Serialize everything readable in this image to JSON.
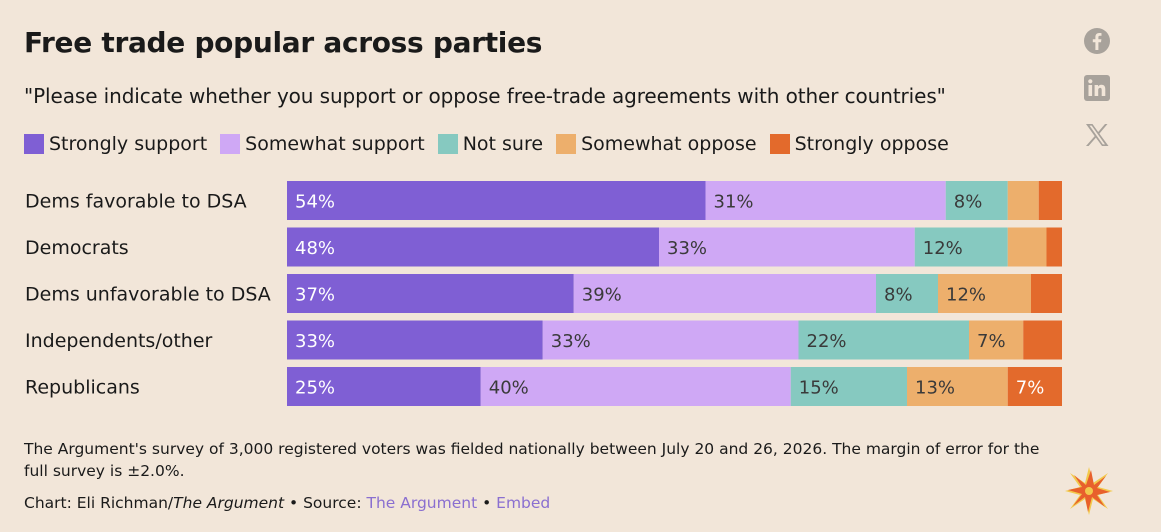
{
  "title": "Free trade popular across parties",
  "subtitle": "\"Please indicate whether you support or oppose free-trade agreements with other countries\"",
  "colors": {
    "strongly_support": "#7f5fd4",
    "somewhat_support": "#cfa8f5",
    "not_sure": "#86c9c0",
    "somewhat_oppose": "#edaf6c",
    "strongly_oppose": "#e36a2c",
    "background": "#f2e6d9"
  },
  "social": {
    "facebook_icon": "facebook-icon",
    "linkedin_icon": "linkedin-icon",
    "x_icon": "x-icon"
  },
  "chart_data": {
    "type": "bar",
    "orientation": "horizontal",
    "stacked": true,
    "xlim": [
      0,
      100
    ],
    "grid": false,
    "legend_position": "top-left",
    "categories": [
      "Dems favorable to DSA",
      "Democrats",
      "Dems unfavorable to DSA",
      "Independents/other",
      "Republicans"
    ],
    "series": [
      {
        "name": "Strongly support",
        "values": [
          54,
          48,
          37,
          33,
          25
        ],
        "labels": [
          "54%",
          "48%",
          "37%",
          "33%",
          "25%"
        ],
        "color": "#7f5fd4"
      },
      {
        "name": "Somewhat support",
        "values": [
          31,
          33,
          39,
          33,
          40
        ],
        "labels": [
          "31%",
          "33%",
          "39%",
          "33%",
          "40%"
        ],
        "color": "#cfa8f5"
      },
      {
        "name": "Not sure",
        "values": [
          8,
          12,
          8,
          22,
          15
        ],
        "labels": [
          "8%",
          "12%",
          "8%",
          "22%",
          "15%"
        ],
        "color": "#86c9c0"
      },
      {
        "name": "Somewhat oppose",
        "values": [
          4,
          5,
          12,
          7,
          13
        ],
        "labels": [
          "",
          "",
          "12%",
          "7%",
          "13%"
        ],
        "color": "#edaf6c"
      },
      {
        "name": "Strongly oppose",
        "values": [
          3,
          2,
          4,
          5,
          7
        ],
        "labels": [
          "",
          "",
          "",
          "",
          "7%"
        ],
        "color": "#e36a2c"
      }
    ]
  },
  "footnote": "The Argument's survey of 3,000 registered voters was fielded nationally between July 20 and 26, 2026. The margin of error for the full survey is ±2.0%.",
  "credit": {
    "prefix": "Chart: Eli Richman/",
    "publication": "The Argument",
    "separator1": " • Source: ",
    "source": "The Argument",
    "separator2": " • ",
    "embed": "Embed"
  }
}
